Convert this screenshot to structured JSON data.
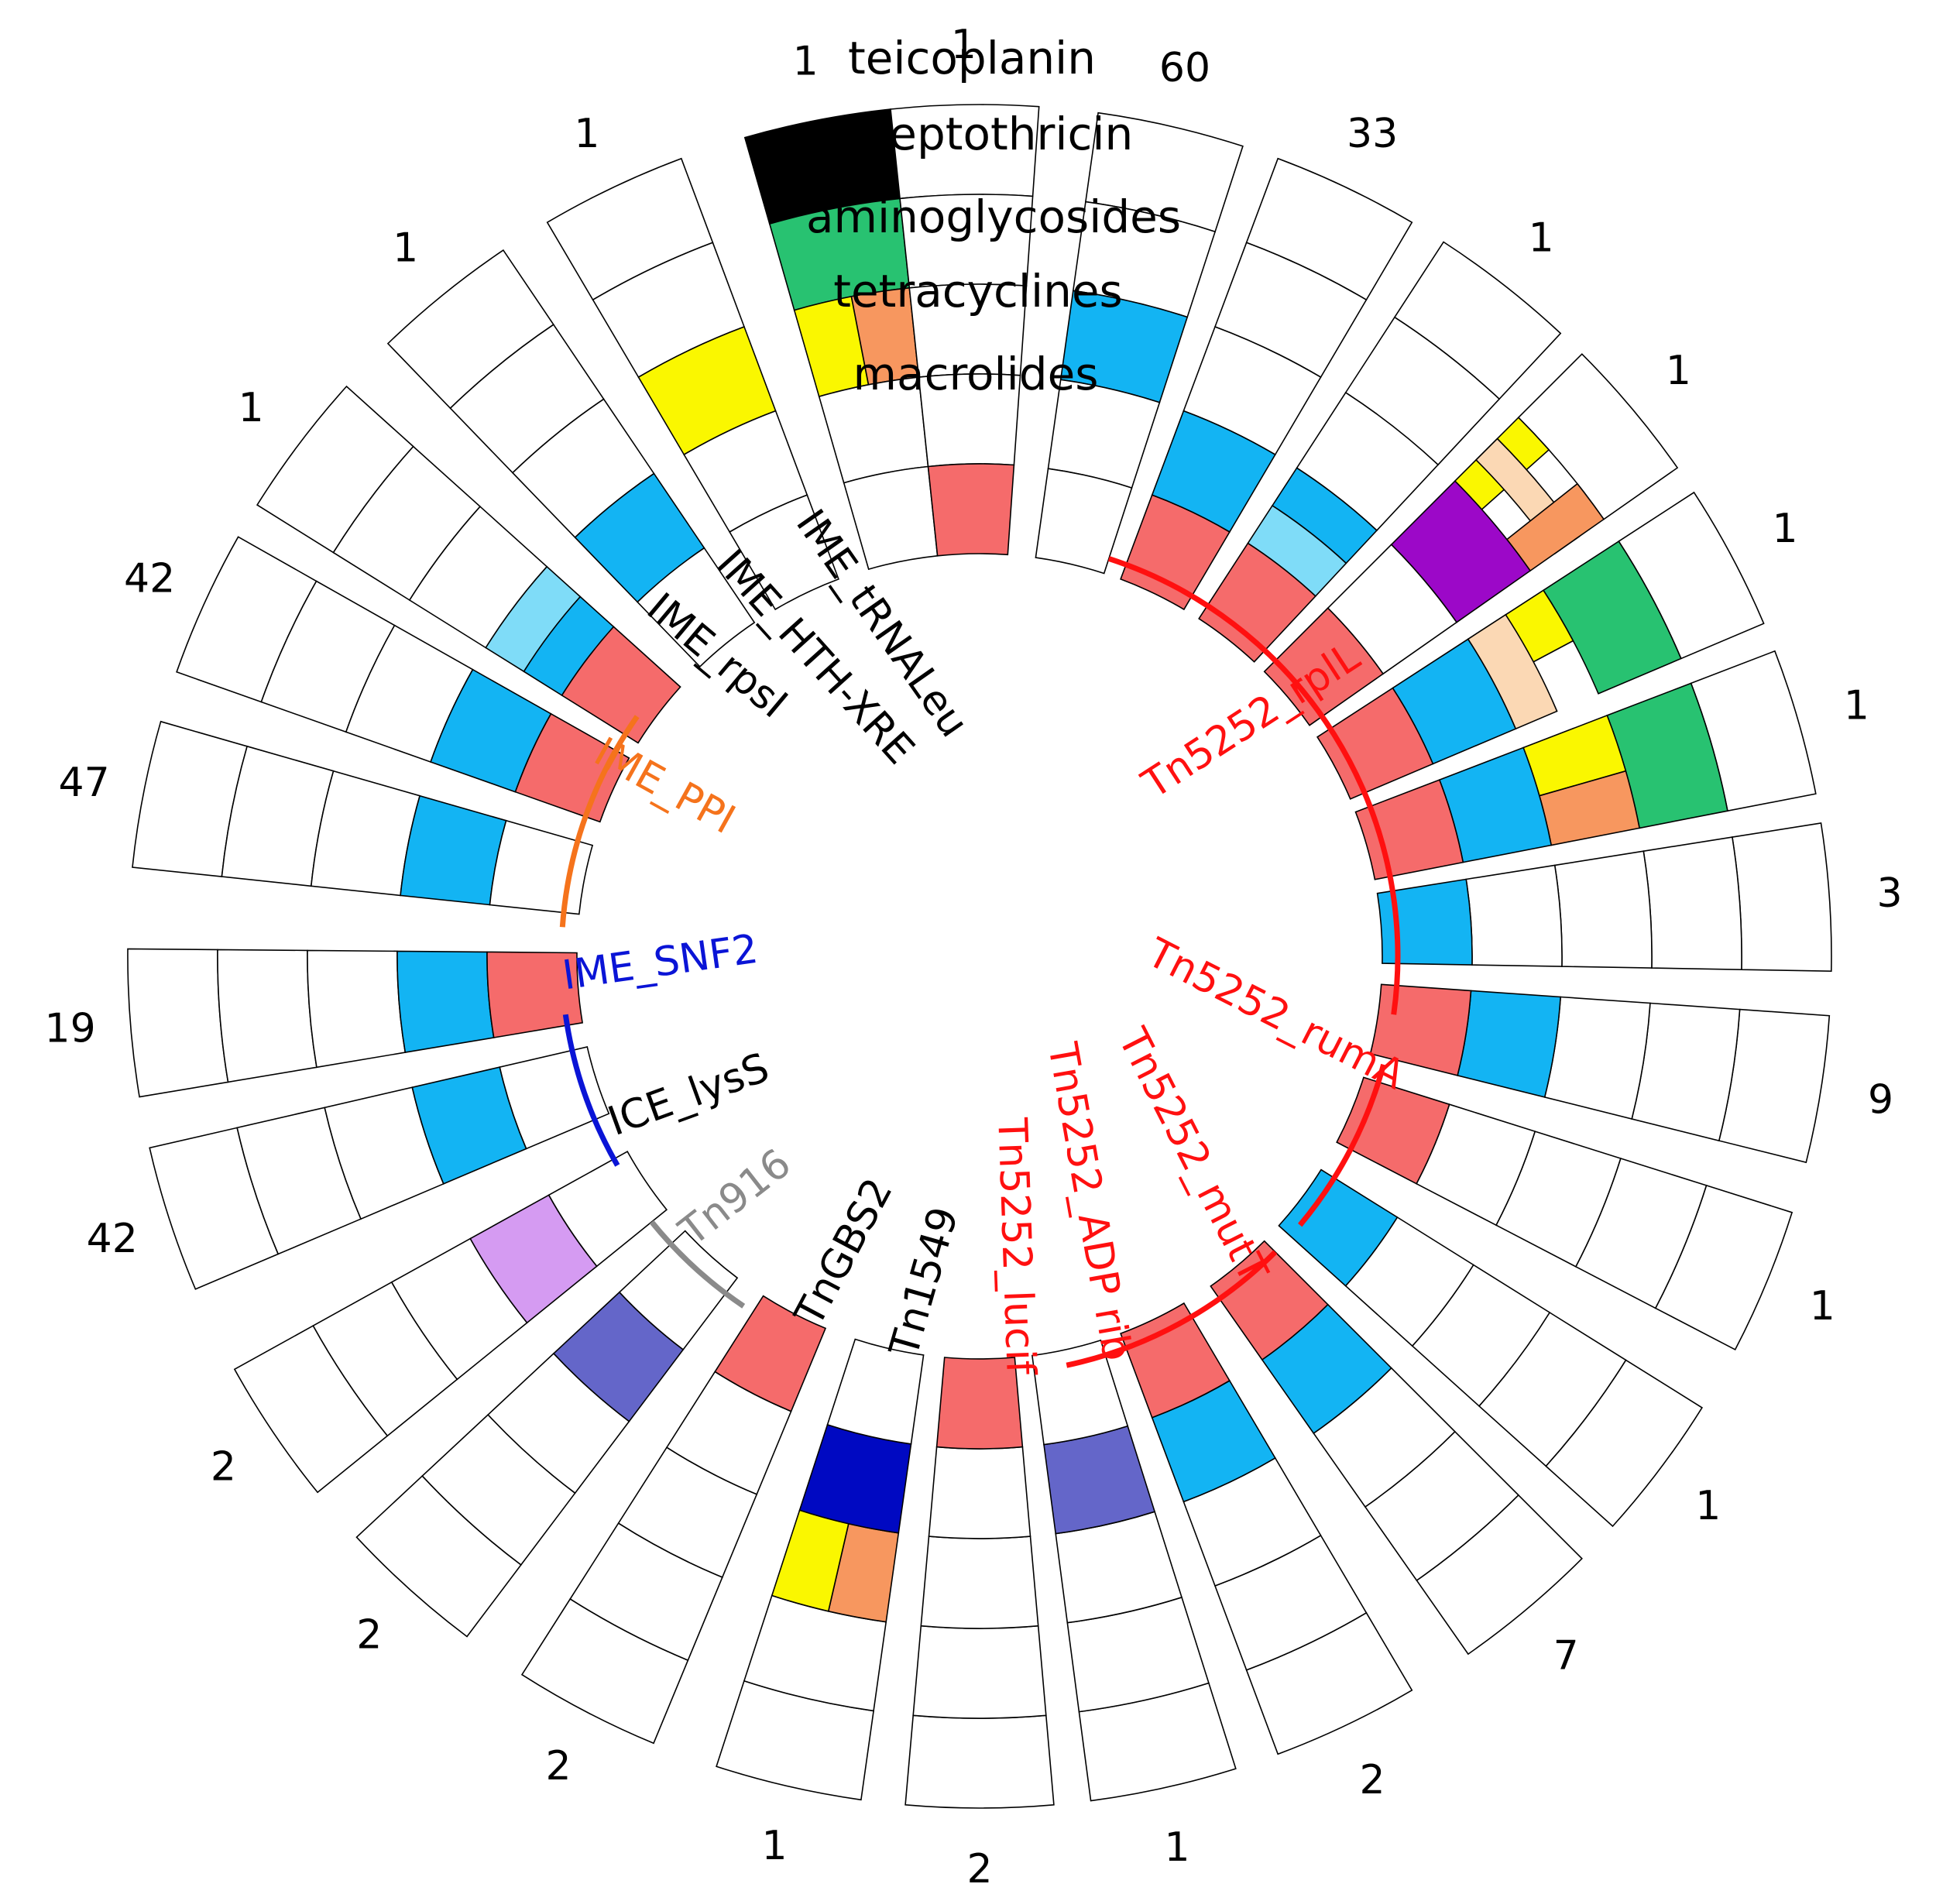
{
  "chart_data": {
    "type": "circular-heatmap",
    "legend_rings": [
      "teicoplanin",
      "streptothricin",
      "aminoglycosides",
      "tetracyclines",
      "macrolides"
    ],
    "colors": {
      "red": "#f56b6b",
      "blue": "#13b4f3",
      "lightblue": "#7fdcf8",
      "yellow": "#faf700",
      "orange": "#f7975f",
      "peach": "#fbd8b4",
      "green": "#28c271",
      "black": "#000000",
      "purple": "#9c08c8",
      "lilac": "#d59bf2",
      "slate": "#6466c9",
      "navy": "#0009c2",
      "empty": "#ffffff"
    },
    "wedges": [
      {
        "count": "1",
        "cells": [
          [
            "black"
          ],
          [
            "green"
          ],
          [
            "yellow",
            "orange"
          ],
          [],
          []
        ]
      },
      {
        "count": "1",
        "cells": [
          [],
          [],
          [
            "yellow"
          ],
          [],
          []
        ]
      },
      {
        "count": "1",
        "cells": [
          [],
          [],
          [],
          [
            "blue"
          ],
          []
        ]
      },
      {
        "count": "1",
        "cells": [
          [],
          [],
          [],
          [
            "lightblue",
            "blue"
          ],
          [
            "red"
          ]
        ]
      },
      {
        "count": "42",
        "cells": [
          [],
          [],
          [],
          [
            "blue"
          ],
          [
            "red"
          ]
        ]
      },
      {
        "count": "47",
        "cells": [
          [],
          [],
          [],
          [
            "blue"
          ],
          []
        ]
      },
      {
        "count": "19",
        "cells": [
          [],
          [],
          [],
          [
            "blue"
          ],
          [
            "red"
          ]
        ]
      },
      {
        "count": "42",
        "cells": [
          [],
          [],
          [],
          [
            "blue"
          ],
          []
        ]
      },
      {
        "count": "2",
        "cells": [
          [],
          [],
          [],
          [
            "lilac"
          ],
          []
        ]
      },
      {
        "count": "2",
        "cells": [
          [],
          [],
          [],
          [
            "slate"
          ],
          []
        ]
      },
      {
        "count": "2",
        "cells": [
          [],
          [],
          [],
          [],
          [
            "red"
          ]
        ]
      },
      {
        "count": "1",
        "cells": [
          [],
          [],
          [
            "orange",
            "yellow"
          ],
          [
            "navy"
          ],
          []
        ]
      },
      {
        "count": "2",
        "cells": [
          [],
          [],
          [],
          [],
          [
            "red"
          ]
        ]
      },
      {
        "count": "1",
        "cells": [
          [],
          [],
          [],
          [
            "slate"
          ],
          []
        ]
      },
      {
        "count": "2",
        "cells": [
          [],
          [],
          [],
          [
            "blue"
          ],
          [
            "red"
          ]
        ]
      },
      {
        "count": "7",
        "cells": [
          [],
          [],
          [],
          [
            "blue"
          ],
          [
            "red"
          ]
        ]
      },
      {
        "count": "1",
        "cells": [
          [],
          [],
          [],
          [],
          [
            "blue"
          ]
        ]
      },
      {
        "count": "1",
        "cells": [
          [],
          [],
          [],
          [],
          [
            "red"
          ]
        ]
      },
      {
        "count": "9",
        "cells": [
          [],
          [],
          [],
          [
            "blue"
          ],
          [
            "red"
          ]
        ]
      },
      {
        "count": "3",
        "cells": [
          [],
          [],
          [],
          [],
          [
            "blue"
          ]
        ]
      },
      {
        "count": "1",
        "cells": [
          [],
          [
            "green"
          ],
          [
            "yellow",
            "orange"
          ],
          [
            "blue"
          ],
          [
            "red"
          ]
        ]
      },
      {
        "count": "1",
        "cells": [
          [],
          [
            "green"
          ],
          [
            "yellow",
            "peach"
          ],
          [
            "blue"
          ],
          [
            "red"
          ]
        ]
      },
      {
        "count": "1",
        "cells": [
          [],
          [
            "yellow",
            "peach",
            "orange"
          ],
          [
            "purple"
          ],
          [],
          [
            "red"
          ]
        ]
      },
      {
        "count": "1",
        "cells": [
          [],
          [],
          [],
          [
            "blue",
            "lightblue"
          ],
          [
            "red"
          ]
        ]
      },
      {
        "count": "33",
        "cells": [
          [],
          [],
          [],
          [
            "blue"
          ],
          [
            "red"
          ]
        ]
      },
      {
        "count": "60",
        "cells": [
          [],
          [],
          [
            "blue"
          ],
          [],
          []
        ]
      },
      {
        "count": "1",
        "cells": [
          [],
          [],
          [],
          [],
          [
            "red"
          ]
        ]
      }
    ],
    "element_labels": [
      {
        "text": "IME_tRNALeu",
        "color": "#000000"
      },
      {
        "text": "IME_HTH-XRE",
        "color": "#000000"
      },
      {
        "text": "IME_rpsI",
        "color": "#000000"
      },
      {
        "text": "IME_PPI",
        "color": "#f5731c"
      },
      {
        "text": "IME_SNF2",
        "color": "#0a14d6"
      },
      {
        "text": "ICE_lysS",
        "color": "#000000"
      },
      {
        "text": "Tn916",
        "color": "#8a8a8a"
      },
      {
        "text": "TnGBS2",
        "color": "#000000"
      },
      {
        "text": "Tn1549",
        "color": "#000000"
      },
      {
        "text": "Tn5252_lucif",
        "color": "#ff1010"
      },
      {
        "text": "Tn5252_ADP rib",
        "color": "#ff1010"
      },
      {
        "text": "Tn5252_mutT",
        "color": "#ff1010"
      },
      {
        "text": "Tn5252_rumA",
        "color": "#ff1010"
      },
      {
        "text": "Tn5252_rplL",
        "color": "#ff1010"
      }
    ],
    "group_arcs": [
      {
        "name": "IME_PPI",
        "color": "#f5731c"
      },
      {
        "name": "IME_SNF2",
        "color": "#0a14d6"
      },
      {
        "name": "Tn916",
        "color": "#8a8a8a"
      },
      {
        "name": "Tn5252_rplL",
        "color": "#ff1010"
      },
      {
        "name": "Tn5252_rumA",
        "color": "#ff1010"
      },
      {
        "name": "Tn5252_mutT",
        "color": "#ff1010"
      }
    ]
  }
}
